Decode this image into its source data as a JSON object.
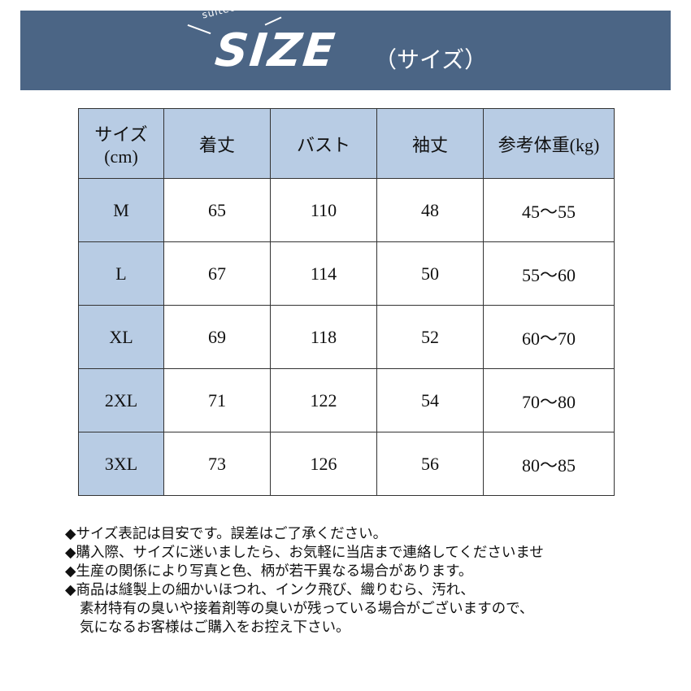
{
  "banner": {
    "logo_text": "SIZE",
    "logo_sub": "suitect",
    "subtitle": "（サイズ）",
    "color": "#4b6585"
  },
  "table": {
    "headers": [
      "サイズ\n(cm)",
      "着丈",
      "バスト",
      "袖丈",
      "参考体重(kg)"
    ],
    "header_color": "#b8cce4",
    "rows": [
      [
        "M",
        "65",
        "110",
        "48",
        "45〜55"
      ],
      [
        "L",
        "67",
        "114",
        "50",
        "55〜60"
      ],
      [
        "XL",
        "69",
        "118",
        "52",
        "60〜70"
      ],
      [
        "2XL",
        "71",
        "122",
        "54",
        "70〜80"
      ],
      [
        "3XL",
        "73",
        "126",
        "56",
        "80〜85"
      ]
    ]
  },
  "notes": [
    "◆サイズ表記は目安です。誤差はご了承ください。",
    "◆購入際、サイズに迷いましたら、お気軽に当店まで連絡してくださいませ",
    "◆生産の関係により写真と色、柄が若干異なる場合があります。",
    "◆商品は縫製上の細かいほつれ、インク飛び、織りむら、汚れ、",
    "素材特有の臭いや接着剤等の臭いが残っている場合がございますので、",
    "気になるお客様はご購入をお控え下さい。"
  ]
}
